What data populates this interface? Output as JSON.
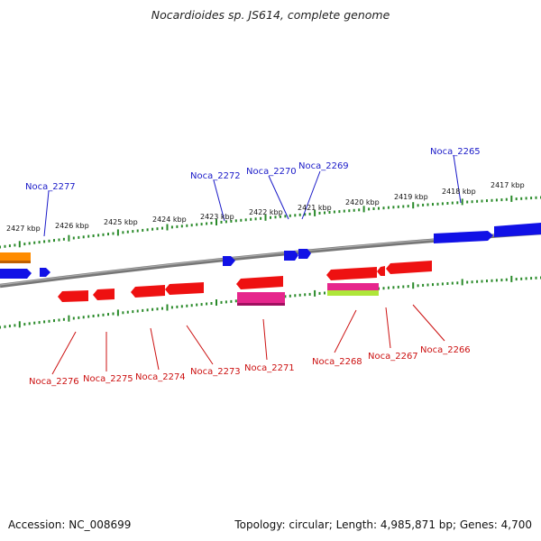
{
  "title": "Nocardioides sp. JS614, complete genome",
  "footer": {
    "accession": "Accession: NC_008699",
    "summary": "Topology: circular; Length: 4,985,871 bp; Genes: 4,700"
  },
  "colors": {
    "forward_label": "#1a1ac8",
    "reverse_label": "#cc1111",
    "forward_gene": "#1111e6",
    "reverse_gene": "#ee1111",
    "orange_gene": "#ff8c00",
    "pink_gene": "#e6268c",
    "lime_gene": "#aee639",
    "backbone": "#888888",
    "ruler": "#2a8a2a"
  },
  "ruler_labels": [
    "2427 kbp",
    "2426 kbp",
    "2425 kbp",
    "2424 kbp",
    "2423 kbp",
    "2422 kbp",
    "2421 kbp",
    "2420 kbp",
    "2419 kbp",
    "2418 kbp",
    "2417 kbp"
  ],
  "forward_labels": [
    "Noca_2277",
    "Noca_2272",
    "Noca_2270",
    "Noca_2269",
    "Noca_2265"
  ],
  "reverse_labels": [
    "Noca_2276",
    "Noca_2275",
    "Noca_2274",
    "Noca_2273",
    "Noca_2271",
    "Noca_2268",
    "Noca_2267",
    "Noca_2266"
  ]
}
